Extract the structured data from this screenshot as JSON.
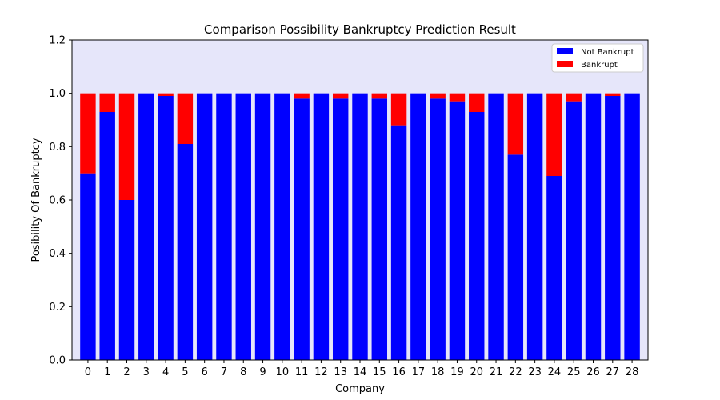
{
  "chart_data": {
    "type": "bar",
    "stacked": true,
    "title": "Comparison Possibility Bankruptcy Prediction Result",
    "xlabel": "Company",
    "ylabel": "Posibility Of Bankruptcy",
    "ylim": [
      0,
      1.2
    ],
    "yticks": [
      "0.0",
      "0.2",
      "0.4",
      "0.6",
      "0.8",
      "1.0",
      "1.2"
    ],
    "categories": [
      "0",
      "1",
      "2",
      "3",
      "4",
      "5",
      "6",
      "7",
      "8",
      "9",
      "10",
      "11",
      "12",
      "13",
      "14",
      "15",
      "16",
      "17",
      "18",
      "19",
      "20",
      "21",
      "22",
      "23",
      "24",
      "25",
      "26",
      "27",
      "28"
    ],
    "series": [
      {
        "name": "Not Bankrupt",
        "color": "#0000ff",
        "values": [
          0.7,
          0.93,
          0.6,
          1.0,
          0.99,
          0.81,
          1.0,
          1.0,
          1.0,
          1.0,
          1.0,
          0.98,
          1.0,
          0.98,
          1.0,
          0.98,
          0.88,
          1.0,
          0.98,
          0.97,
          0.93,
          1.0,
          0.77,
          1.0,
          0.69,
          0.97,
          1.0,
          0.99,
          1.0
        ]
      },
      {
        "name": "Bankrupt",
        "color": "#ff0000",
        "values": [
          0.3,
          0.07,
          0.4,
          0.0,
          0.01,
          0.19,
          0.0,
          0.0,
          0.0,
          0.0,
          0.0,
          0.02,
          0.0,
          0.02,
          0.0,
          0.02,
          0.12,
          0.0,
          0.02,
          0.03,
          0.07,
          0.0,
          0.23,
          0.0,
          0.31,
          0.03,
          0.0,
          0.01,
          0.0
        ]
      }
    ],
    "plot_background": "#e6e6fa",
    "grid": false,
    "legend_position": "upper right"
  }
}
